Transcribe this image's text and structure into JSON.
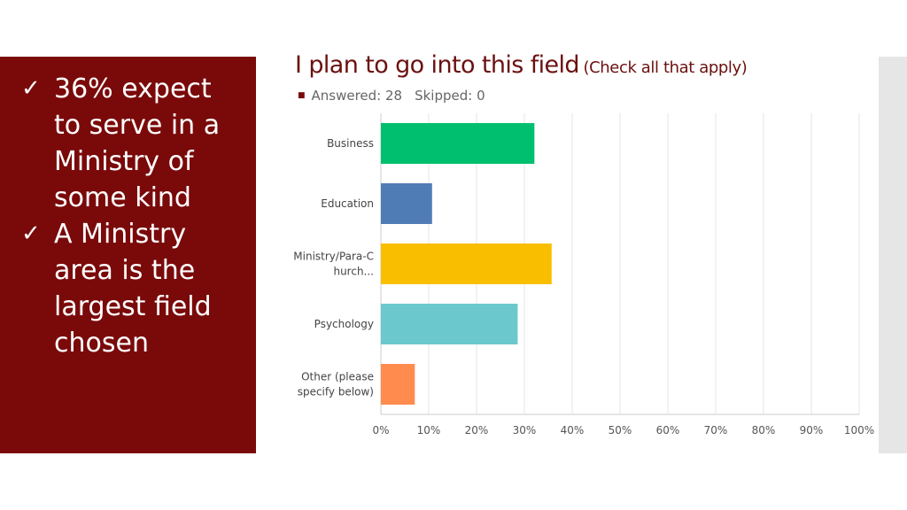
{
  "sidebar": {
    "bullets": [
      {
        "check": "✓",
        "text": "36% expect to serve in a Ministry of some kind"
      },
      {
        "check": "✓",
        "text": "A Ministry area is the largest field chosen"
      }
    ],
    "background": "#7a0a0a"
  },
  "header": {
    "title": "I plan to go into this field",
    "title_note": "(Check all that apply)",
    "answered": "Answered: 28",
    "skipped": "Skipped: 0"
  },
  "chart_data": {
    "type": "bar",
    "orientation": "horizontal",
    "categories": [
      [
        "Business"
      ],
      [
        "Education"
      ],
      [
        "Ministry/Para-C",
        "hurch..."
      ],
      [
        "Psychology"
      ],
      [
        "Other (please",
        "specify below)"
      ]
    ],
    "values": [
      32.1,
      10.7,
      35.7,
      28.6,
      7.1
    ],
    "colors": [
      "#00bf6f",
      "#507cb6",
      "#f9be00",
      "#6bc8cd",
      "#ff8b4f"
    ],
    "xlim": [
      0,
      100
    ],
    "xticks": [
      "0%",
      "10%",
      "20%",
      "30%",
      "40%",
      "50%",
      "60%",
      "70%",
      "80%",
      "90%",
      "100%"
    ],
    "grid": true
  }
}
